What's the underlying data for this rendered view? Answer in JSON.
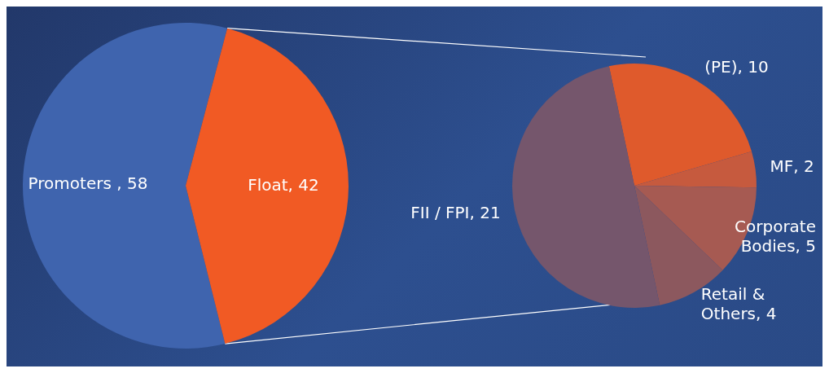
{
  "chart_data": [
    {
      "type": "pie",
      "categories": [
        "Promoters ",
        "Float"
      ],
      "values": [
        58,
        42
      ],
      "value_labels": [
        ", 58",
        ", 42"
      ],
      "colors": [
        "#3f64ae",
        "#f15a24"
      ]
    },
    {
      "type": "pie",
      "categories": [
        "(PE)",
        "MF",
        "Corporate Bodies",
        "Retail & Others",
        "FII / FPI"
      ],
      "values": [
        10,
        2,
        5,
        4,
        21
      ],
      "value_labels": [
        ", 10",
        ", 2",
        ", 5",
        ", 4",
        ", 21"
      ],
      "colors": [
        "#df5a2c",
        "#c65a3e",
        "#a65a52",
        "#8c585e",
        "#75566c"
      ]
    }
  ]
}
